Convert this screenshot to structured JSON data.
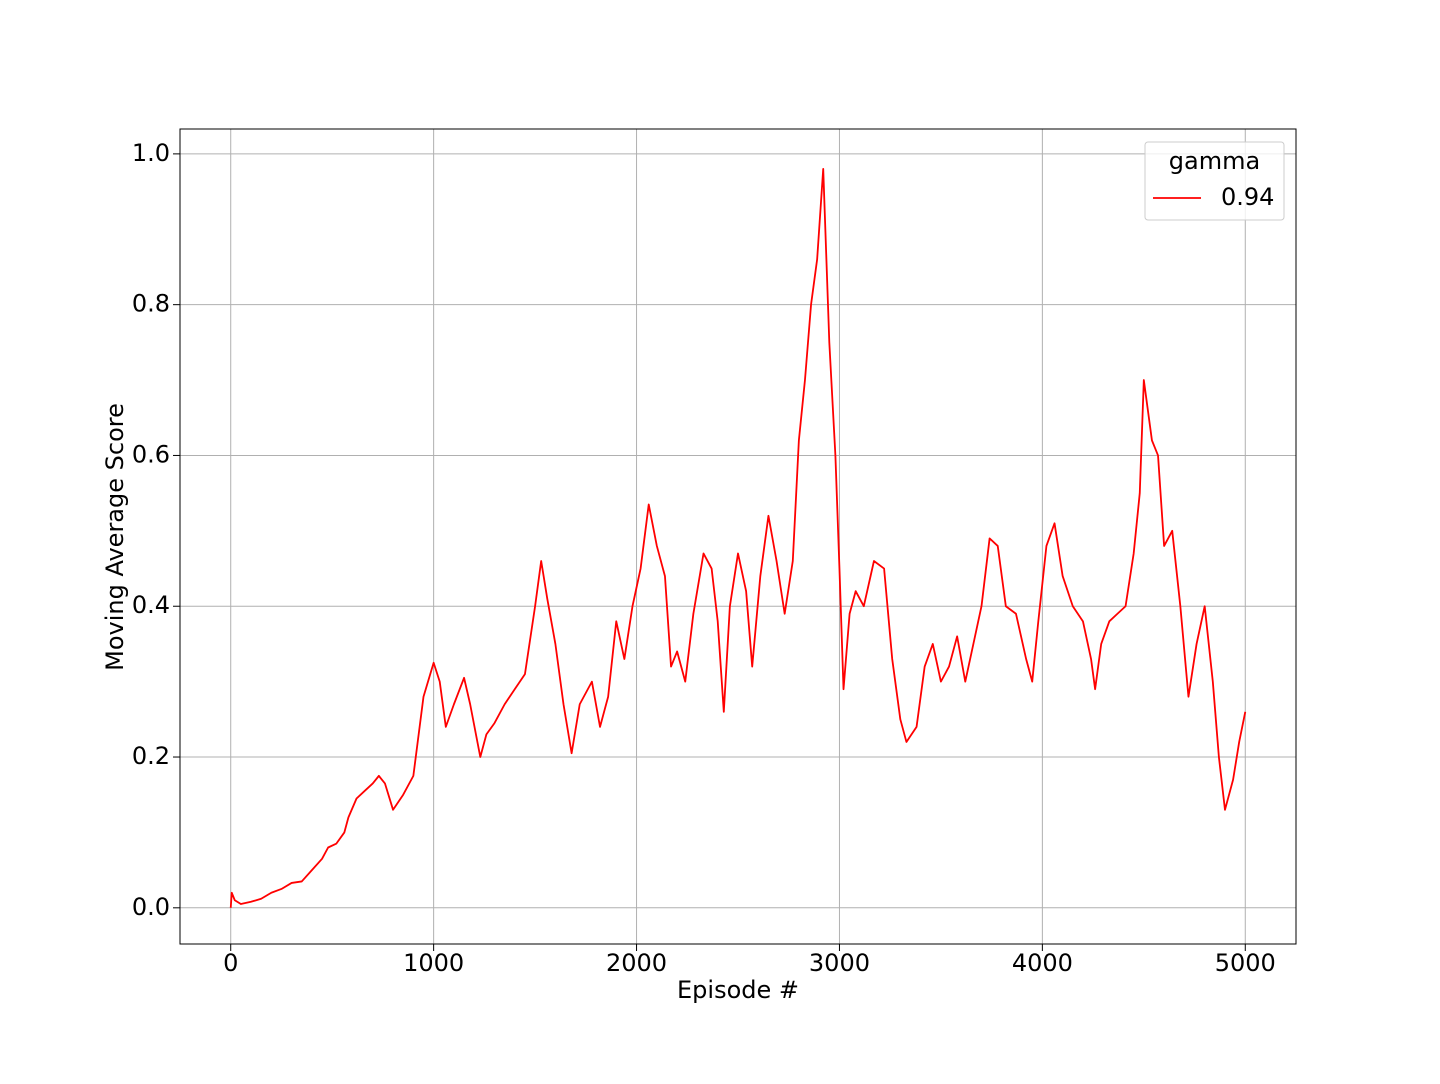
{
  "chart_data": {
    "type": "line",
    "xlabel": "Episode #",
    "ylabel": "Moving Average Score",
    "legend_title": "gamma",
    "legend": "upper right",
    "grid": true,
    "x": [
      0,
      5,
      20,
      50,
      100,
      150,
      200,
      250,
      300,
      350,
      400,
      450,
      480,
      520,
      560,
      580,
      620,
      660,
      700,
      730,
      760,
      800,
      850,
      900,
      950,
      1000,
      1030,
      1060,
      1100,
      1150,
      1180,
      1230,
      1260,
      1300,
      1350,
      1400,
      1450,
      1500,
      1530,
      1560,
      1600,
      1640,
      1680,
      1720,
      1780,
      1820,
      1860,
      1900,
      1940,
      1980,
      2020,
      2060,
      2100,
      2140,
      2170,
      2200,
      2240,
      2280,
      2330,
      2370,
      2400,
      2430,
      2460,
      2500,
      2540,
      2570,
      2610,
      2650,
      2690,
      2730,
      2770,
      2800,
      2830,
      2860,
      2890,
      2920,
      2950,
      2980,
      3000,
      3020,
      3050,
      3080,
      3120,
      3170,
      3220,
      3260,
      3300,
      3330,
      3380,
      3420,
      3460,
      3500,
      3540,
      3580,
      3620,
      3660,
      3700,
      3740,
      3780,
      3820,
      3870,
      3920,
      3950,
      3980,
      4020,
      4060,
      4100,
      4150,
      4200,
      4240,
      4260,
      4290,
      4330,
      4370,
      4410,
      4450,
      4480,
      4500,
      4540,
      4570,
      4600,
      4640,
      4680,
      4720,
      4760,
      4800,
      4840,
      4870,
      4900,
      4940,
      4970,
      5000
    ],
    "series": [
      {
        "name": "0.94",
        "color": "#ff0000",
        "values": [
          0.0,
          0.02,
          0.01,
          0.005,
          0.008,
          0.012,
          0.02,
          0.025,
          0.033,
          0.035,
          0.05,
          0.065,
          0.08,
          0.085,
          0.1,
          0.12,
          0.145,
          0.155,
          0.165,
          0.175,
          0.165,
          0.13,
          0.15,
          0.175,
          0.28,
          0.325,
          0.3,
          0.24,
          0.27,
          0.305,
          0.27,
          0.2,
          0.23,
          0.245,
          0.27,
          0.29,
          0.31,
          0.4,
          0.46,
          0.41,
          0.35,
          0.27,
          0.205,
          0.27,
          0.3,
          0.24,
          0.28,
          0.38,
          0.33,
          0.4,
          0.45,
          0.535,
          0.48,
          0.44,
          0.32,
          0.34,
          0.3,
          0.39,
          0.47,
          0.45,
          0.38,
          0.26,
          0.4,
          0.47,
          0.42,
          0.32,
          0.44,
          0.52,
          0.46,
          0.39,
          0.46,
          0.62,
          0.7,
          0.8,
          0.86,
          0.98,
          0.75,
          0.6,
          0.45,
          0.29,
          0.39,
          0.42,
          0.4,
          0.46,
          0.45,
          0.33,
          0.25,
          0.22,
          0.24,
          0.32,
          0.35,
          0.3,
          0.32,
          0.36,
          0.3,
          0.35,
          0.4,
          0.49,
          0.48,
          0.4,
          0.39,
          0.33,
          0.3,
          0.38,
          0.48,
          0.51,
          0.44,
          0.4,
          0.38,
          0.33,
          0.29,
          0.35,
          0.38,
          0.39,
          0.4,
          0.47,
          0.55,
          0.7,
          0.62,
          0.6,
          0.48,
          0.5,
          0.4,
          0.28,
          0.35,
          0.4,
          0.3,
          0.2,
          0.13,
          0.17,
          0.22,
          0.26
        ]
      }
    ],
    "xlim": [
      -250,
      5250
    ],
    "xticks": [
      0,
      1000,
      2000,
      3000,
      4000,
      5000
    ],
    "ylim": [
      -0.048,
      1.033
    ],
    "yticks": [
      {
        "value": 0,
        "label": "0.0"
      },
      0.2,
      0.4,
      0.6,
      0.8,
      {
        "value": 1,
        "label": "1.0"
      }
    ]
  }
}
